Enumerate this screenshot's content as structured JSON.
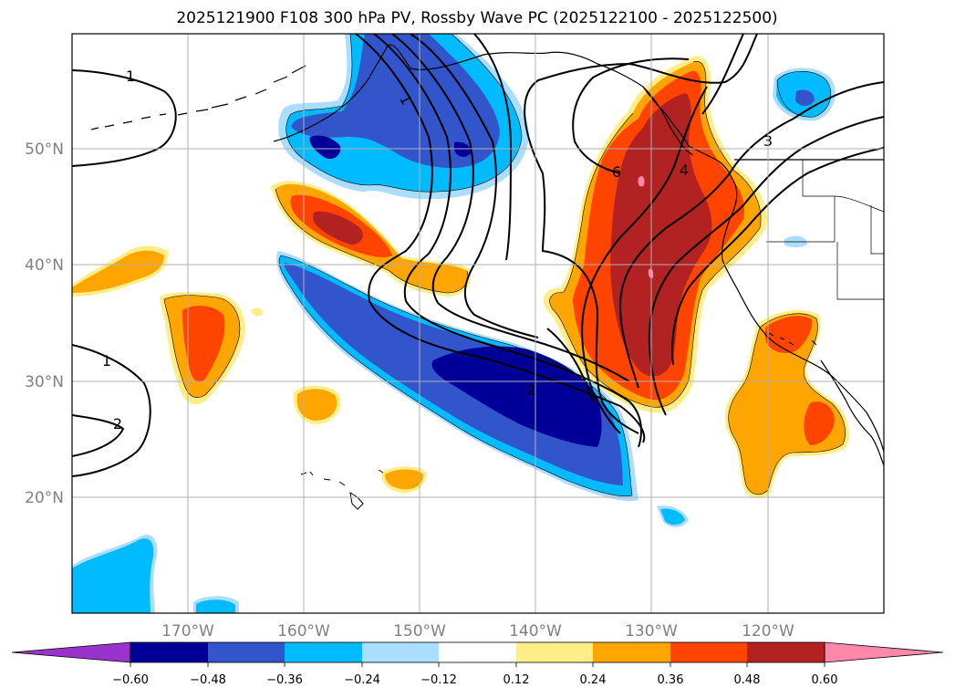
{
  "title": "2025121900 F108 300 hPa PV, Rossby Wave PC (2025122100 - 2025122500)",
  "latitude_labels": [
    "50°N",
    "40°N",
    "30°N",
    "20°N"
  ],
  "longitude_labels": [
    "170°W",
    "160°W",
    "150°W",
    "140°W",
    "130°W",
    "120°W"
  ],
  "contour_labels": [
    "1",
    "1",
    "1",
    "2",
    "2",
    "3",
    "4",
    "6"
  ],
  "colorbar": {
    "tick_labels": [
      "−0.60",
      "−0.48",
      "−0.36",
      "−0.24",
      "−0.12",
      "0.12",
      "0.24",
      "0.36",
      "0.48",
      "0.60"
    ],
    "colors": [
      "#9933cc",
      "#000099",
      "#3355cc",
      "#00bbff",
      "#aaddff",
      "#ffffff",
      "#ffee88",
      "#ffa500",
      "#ff4400",
      "#b22222",
      "#ff88aa"
    ]
  },
  "map_extent": {
    "lon_min": -180,
    "lon_max": -110,
    "lat_min": 10,
    "lat_max": 60
  },
  "fill_colors": {
    "neg1": "#aaddff",
    "neg2": "#00bbff",
    "neg3": "#3355cc",
    "neg4": "#000099",
    "pos1": "#ffee88",
    "pos2": "#ffa500",
    "pos3": "#ff4400",
    "pos4": "#b22222",
    "pos5": "#ff88aa"
  }
}
